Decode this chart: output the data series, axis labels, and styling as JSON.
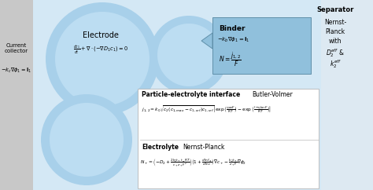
{
  "bg_color": "#e8e8e8",
  "left_strip_color": "#c8c8c8",
  "right_strip_color": "#dde8f0",
  "blue_bg_color": "#cce0f0",
  "circle_large_color": "#a8cce8",
  "circle_med_color": "#b8d8f0",
  "binder_box_color": "#90c0dc",
  "white": "#ffffff",
  "current_collector_label": "Current\ncollector",
  "cc_eq": "$-k_c\\nabla\\phi_1 = \\mathbf{i}_1$",
  "electrode_label": "Electrode",
  "electrode_eq": "$\\frac{dc_1}{dt} + \\nabla \\cdot(-\\nabla D_1 c_1) = 0$",
  "binder_label": "Binder",
  "binder_eq1": "$-k_b\\nabla\\phi_1 = \\mathbf{i}_1$",
  "binder_eq2": "$N = \\dfrac{j_{1,2}}{F}$",
  "separator_label": "Separator",
  "sep_line1": "Nernst-",
  "sep_line2": "Planck",
  "sep_line3": "with",
  "sep_line4": "$D_2^{eff}$ &",
  "sep_line5": "$k_2^{eff}$",
  "interface_label": "Particle-electrolyte interface",
  "bv_label": "Butler-Volmer",
  "bv_eq": "$j_{1,2}=k_0\\sqrt{c_2(c_{1,max}-c_{1,ref})c_{1,ref}}\\left[\\exp\\left(\\frac{\\eta\\alpha_a F}{RT}\\right)-\\exp\\left(\\frac{(-\\eta)\\alpha_c F}{RT}\\right)\\right]$",
  "electrolyte_label": "Electrolyte",
  "np_label": "Nernst-Planck",
  "np_eq": "$N_+ = \\left(-D_2 + \\frac{2k_2 t_+t_- RT}{c_+z_+F^2}\\right)\\left(1+\\frac{d\\ln f_{\\pm}}{d\\ln c}\\right)\\nabla c_+ - \\frac{k_2t_+}{z_+F}\\nabla\\phi_2$"
}
